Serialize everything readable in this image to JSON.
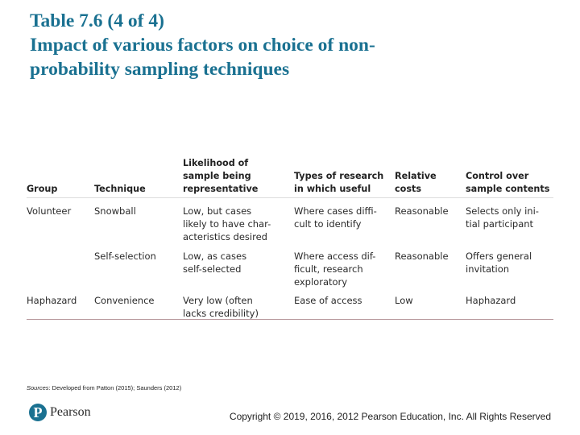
{
  "title": {
    "line1": "Table 7.6 (4 of 4)",
    "line2": "Impact of various factors on choice of non-",
    "line3": "probability sampling techniques"
  },
  "table": {
    "headers": [
      "Group",
      "Technique",
      "Likelihood of\nsample being\nrepresentative",
      "Types of research\nin which useful",
      "Relative\ncosts",
      "Control over\nsample contents"
    ],
    "rows": [
      [
        "Volunteer",
        "Snowball",
        "Low, but cases\nlikely to have char-\nacteristics desired",
        "Where cases diffi-\ncult to identify",
        "Reasonable",
        "Selects only ini-\ntial participant"
      ],
      [
        "",
        "Self-selection",
        "Low, as cases\nself-selected",
        "Where access dif-\nficult, research\nexploratory",
        "Reasonable",
        "Offers general\ninvitation"
      ],
      [
        "Haphazard",
        "Convenience",
        "Very low (often\nlacks credibility)",
        "Ease of access",
        "Low",
        "Haphazard"
      ]
    ]
  },
  "sources": {
    "label": "Sources",
    "text": ": Developed from Patton (2015); Saunders (2012)"
  },
  "footer": {
    "logo_mark": "P",
    "logo_text": "Pearson",
    "copyright": "Copyright © 2019, 2016, 2012 Pearson Education, Inc. All Rights Reserved"
  },
  "colors": {
    "title": "#1a7191",
    "brand": "#1a7191",
    "table_bottom_rule": "#b99a9e",
    "header_rule": "#dcdcdc"
  }
}
